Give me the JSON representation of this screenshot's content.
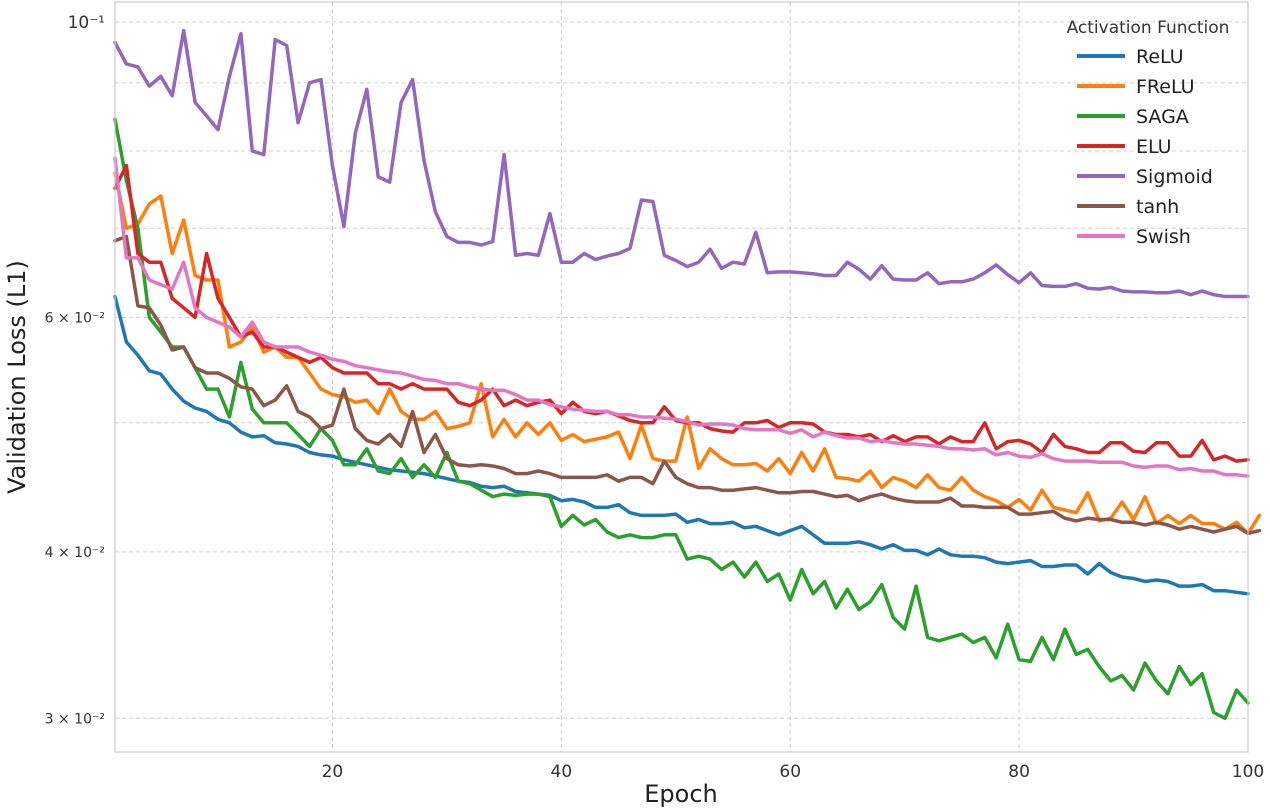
{
  "chart_data": {
    "type": "line",
    "title": "",
    "xlabel": "Epoch",
    "ylabel": "Validation Loss (L1)",
    "yscale": "log",
    "xlim": [
      1,
      100
    ],
    "ylim": [
      0.0283,
      0.1035
    ],
    "grid": true,
    "x_ticks": [
      20,
      40,
      60,
      80,
      100
    ],
    "y_ticks_major": [
      {
        "value": 0.1,
        "label": "10⁻¹"
      }
    ],
    "y_ticks_minor": [
      {
        "value": 0.03,
        "label": "3 × 10⁻²"
      },
      {
        "value": 0.04,
        "label": "4 × 10⁻²"
      },
      {
        "value": 0.05,
        "label": ""
      },
      {
        "value": 0.06,
        "label": "6 × 10⁻²"
      },
      {
        "value": 0.07,
        "label": ""
      },
      {
        "value": 0.08,
        "label": ""
      },
      {
        "value": 0.09,
        "label": ""
      }
    ],
    "legend": {
      "title": "Activation Function",
      "position": "top-right"
    },
    "series": [
      {
        "name": "ReLU",
        "color": "#1f77b4",
        "values": [
          0.0622,
          0.0575,
          0.0562,
          0.0547,
          0.0544,
          0.053,
          0.0519,
          0.0513,
          0.051,
          0.0503,
          0.05,
          0.0492,
          0.0488,
          0.0489,
          0.0483,
          0.0482,
          0.048,
          0.0475,
          0.0473,
          0.0472,
          0.0469,
          0.0467,
          0.0465,
          0.0463,
          0.0461,
          0.046,
          0.0459,
          0.0458,
          0.0456,
          0.0454,
          0.0452,
          0.0451,
          0.0448,
          0.0447,
          0.0448,
          0.0444,
          0.0443,
          0.0442,
          0.0441,
          0.0437,
          0.0438,
          0.0436,
          0.0432,
          0.0432,
          0.0434,
          0.0428,
          0.0426,
          0.0426,
          0.0426,
          0.0427,
          0.0421,
          0.0423,
          0.042,
          0.042,
          0.0421,
          0.0417,
          0.0418,
          0.0415,
          0.0412,
          0.0415,
          0.0418,
          0.0412,
          0.0406,
          0.0406,
          0.0406,
          0.0407,
          0.0405,
          0.0402,
          0.0405,
          0.0401,
          0.0401,
          0.0398,
          0.0402,
          0.0398,
          0.0397,
          0.0397,
          0.0396,
          0.0393,
          0.0392,
          0.0393,
          0.0394,
          0.039,
          0.039,
          0.0391,
          0.0391,
          0.0385,
          0.0392,
          0.0386,
          0.0383,
          0.0382,
          0.038,
          0.0381,
          0.038,
          0.0377,
          0.0377,
          0.0378,
          0.0374,
          0.0374,
          0.0373,
          0.0372
        ]
      },
      {
        "name": "FReLU",
        "color": "#ff7f0e",
        "values": [
          0.077,
          0.07,
          0.0705,
          0.073,
          0.074,
          0.067,
          0.071,
          0.0645,
          0.064,
          0.064,
          0.057,
          0.0575,
          0.059,
          0.0565,
          0.057,
          0.056,
          0.056,
          0.0545,
          0.053,
          0.0525,
          0.0523,
          0.0518,
          0.052,
          0.0508,
          0.053,
          0.051,
          0.0503,
          0.0503,
          0.051,
          0.0495,
          0.0497,
          0.05,
          0.0535,
          0.0488,
          0.0503,
          0.0488,
          0.05,
          0.049,
          0.05,
          0.0485,
          0.049,
          0.0484,
          0.0486,
          0.0488,
          0.0492,
          0.047,
          0.0498,
          0.047,
          0.0468,
          0.0468,
          0.0505,
          0.0462,
          0.0478,
          0.047,
          0.0465,
          0.0465,
          0.0466,
          0.046,
          0.047,
          0.0458,
          0.0475,
          0.046,
          0.0478,
          0.0455,
          0.0454,
          0.0452,
          0.046,
          0.0447,
          0.0455,
          0.0452,
          0.0447,
          0.0457,
          0.0447,
          0.0445,
          0.0455,
          0.0445,
          0.044,
          0.0437,
          0.0432,
          0.0438,
          0.043,
          0.0445,
          0.0432,
          0.043,
          0.0428,
          0.0443,
          0.0422,
          0.0424,
          0.0436,
          0.0423,
          0.044,
          0.042,
          0.0426,
          0.042,
          0.0426,
          0.042,
          0.042,
          0.0416,
          0.0421,
          0.0413,
          0.0426
        ]
      },
      {
        "name": "SAGA",
        "color": "#2ca02c",
        "values": [
          0.0845,
          0.076,
          0.07,
          0.06,
          0.0585,
          0.057,
          0.057,
          0.055,
          0.053,
          0.053,
          0.0505,
          0.0555,
          0.0512,
          0.05,
          0.05,
          0.05,
          0.049,
          0.048,
          0.0495,
          0.0485,
          0.0465,
          0.0465,
          0.0478,
          0.046,
          0.0458,
          0.047,
          0.0455,
          0.0465,
          0.0455,
          0.0475,
          0.0452,
          0.045,
          0.0445,
          0.044,
          0.0442,
          0.0441,
          0.0442,
          0.0442,
          0.044,
          0.0418,
          0.0426,
          0.0419,
          0.0423,
          0.0414,
          0.041,
          0.0412,
          0.041,
          0.041,
          0.0412,
          0.0412,
          0.0395,
          0.0397,
          0.0395,
          0.0388,
          0.0393,
          0.0383,
          0.0393,
          0.038,
          0.0385,
          0.0368,
          0.0388,
          0.0372,
          0.038,
          0.0363,
          0.0375,
          0.0362,
          0.0367,
          0.0378,
          0.0357,
          0.035,
          0.0377,
          0.0345,
          0.0343,
          0.0345,
          0.0347,
          0.0342,
          0.0345,
          0.0333,
          0.0353,
          0.0332,
          0.0331,
          0.0345,
          0.0332,
          0.035,
          0.0335,
          0.0338,
          0.0328,
          0.032,
          0.0323,
          0.0315,
          0.033,
          0.032,
          0.0313,
          0.0328,
          0.0318,
          0.0324,
          0.0303,
          0.03,
          0.0315,
          0.0308
        ]
      },
      {
        "name": "ELU",
        "color": "#d62728",
        "values": [
          0.075,
          0.078,
          0.067,
          0.066,
          0.066,
          0.062,
          0.061,
          0.06,
          0.067,
          0.062,
          0.06,
          0.058,
          0.0585,
          0.057,
          0.057,
          0.0565,
          0.056,
          0.0555,
          0.056,
          0.055,
          0.0545,
          0.0545,
          0.0545,
          0.0535,
          0.0535,
          0.053,
          0.0535,
          0.053,
          0.053,
          0.053,
          0.0518,
          0.0515,
          0.052,
          0.053,
          0.0515,
          0.052,
          0.0515,
          0.0518,
          0.052,
          0.0508,
          0.0518,
          0.051,
          0.0508,
          0.051,
          0.0506,
          0.0502,
          0.05,
          0.05,
          0.0514,
          0.0502,
          0.05,
          0.05,
          0.0495,
          0.0493,
          0.0492,
          0.05,
          0.05,
          0.0502,
          0.0496,
          0.05,
          0.05,
          0.0499,
          0.0492,
          0.049,
          0.049,
          0.0488,
          0.049,
          0.0484,
          0.0489,
          0.0484,
          0.0488,
          0.0488,
          0.0482,
          0.0488,
          0.0484,
          0.0484,
          0.05,
          0.0478,
          0.0484,
          0.0485,
          0.0482,
          0.0475,
          0.049,
          0.048,
          0.0478,
          0.0475,
          0.0475,
          0.0483,
          0.0483,
          0.0476,
          0.0475,
          0.0483,
          0.0483,
          0.0472,
          0.0472,
          0.0485,
          0.0469,
          0.0472,
          0.0468,
          0.0469
        ]
      },
      {
        "name": "Sigmoid",
        "color": "#9467bd",
        "values": [
          0.0965,
          0.093,
          0.0925,
          0.0895,
          0.091,
          0.088,
          0.0985,
          0.087,
          0.085,
          0.083,
          0.091,
          0.098,
          0.08,
          0.0795,
          0.097,
          0.096,
          0.084,
          0.09,
          0.0905,
          0.078,
          0.0702,
          0.0825,
          0.089,
          0.0765,
          0.0758,
          0.087,
          0.0905,
          0.0787,
          0.072,
          0.069,
          0.0683,
          0.0683,
          0.068,
          0.0684,
          0.0795,
          0.0668,
          0.067,
          0.0668,
          0.0718,
          0.066,
          0.066,
          0.067,
          0.0663,
          0.0667,
          0.067,
          0.0676,
          0.0735,
          0.0733,
          0.0668,
          0.0662,
          0.0655,
          0.066,
          0.0675,
          0.0653,
          0.066,
          0.0658,
          0.0695,
          0.0648,
          0.0649,
          0.0649,
          0.0648,
          0.0647,
          0.0645,
          0.0645,
          0.066,
          0.0652,
          0.0641,
          0.0656,
          0.0641,
          0.064,
          0.064,
          0.0648,
          0.0636,
          0.0638,
          0.0638,
          0.0641,
          0.0648,
          0.0657,
          0.0646,
          0.0637,
          0.0648,
          0.0634,
          0.0633,
          0.0633,
          0.0636,
          0.0631,
          0.063,
          0.0632,
          0.0628,
          0.0627,
          0.0627,
          0.0626,
          0.0626,
          0.0628,
          0.0624,
          0.0628,
          0.0624,
          0.0622,
          0.0622,
          0.0622
        ]
      },
      {
        "name": "tanh",
        "color": "#8c564b",
        "values": [
          0.0685,
          0.069,
          0.0612,
          0.061,
          0.0592,
          0.0567,
          0.057,
          0.055,
          0.0545,
          0.0545,
          0.054,
          0.0532,
          0.053,
          0.0515,
          0.052,
          0.0533,
          0.051,
          0.0505,
          0.0495,
          0.0498,
          0.053,
          0.0495,
          0.0485,
          0.0482,
          0.049,
          0.048,
          0.051,
          0.0475,
          0.049,
          0.047,
          0.0465,
          0.0464,
          0.0465,
          0.0464,
          0.0462,
          0.0458,
          0.0458,
          0.046,
          0.0458,
          0.0455,
          0.0455,
          0.0455,
          0.0455,
          0.0457,
          0.0452,
          0.0455,
          0.0455,
          0.045,
          0.0468,
          0.0455,
          0.045,
          0.0447,
          0.0447,
          0.0445,
          0.0445,
          0.0446,
          0.0447,
          0.0445,
          0.0443,
          0.0443,
          0.0444,
          0.0444,
          0.0442,
          0.044,
          0.0441,
          0.0437,
          0.044,
          0.0442,
          0.0439,
          0.0437,
          0.0436,
          0.0436,
          0.0436,
          0.0439,
          0.0433,
          0.0433,
          0.0432,
          0.0432,
          0.0432,
          0.0427,
          0.0427,
          0.0428,
          0.0429,
          0.0424,
          0.0422,
          0.0424,
          0.0423,
          0.0423,
          0.0421,
          0.0421,
          0.0419,
          0.0421,
          0.0419,
          0.0416,
          0.0418,
          0.0416,
          0.0414,
          0.0416,
          0.0418,
          0.0413,
          0.0415
        ]
      },
      {
        "name": "Swish",
        "color": "#e377c2",
        "values": [
          0.079,
          0.0665,
          0.0665,
          0.064,
          0.0635,
          0.063,
          0.066,
          0.061,
          0.06,
          0.0595,
          0.059,
          0.058,
          0.0595,
          0.0575,
          0.057,
          0.057,
          0.057,
          0.0565,
          0.0562,
          0.0558,
          0.0556,
          0.0552,
          0.055,
          0.0548,
          0.0546,
          0.0545,
          0.0542,
          0.0539,
          0.0538,
          0.0535,
          0.0535,
          0.0532,
          0.053,
          0.0529,
          0.0529,
          0.0525,
          0.052,
          0.052,
          0.0516,
          0.0514,
          0.0512,
          0.0511,
          0.051,
          0.051,
          0.0507,
          0.0507,
          0.0505,
          0.0505,
          0.0504,
          0.0503,
          0.0501,
          0.0498,
          0.0499,
          0.0499,
          0.0498,
          0.0495,
          0.0494,
          0.0494,
          0.0494,
          0.0491,
          0.0494,
          0.0488,
          0.0492,
          0.0489,
          0.0487,
          0.0487,
          0.0484,
          0.0485,
          0.0483,
          0.0482,
          0.0482,
          0.0481,
          0.048,
          0.0478,
          0.0478,
          0.0477,
          0.0478,
          0.0473,
          0.0475,
          0.0472,
          0.0471,
          0.0474,
          0.047,
          0.0468,
          0.0468,
          0.0468,
          0.0467,
          0.0467,
          0.0467,
          0.0464,
          0.0463,
          0.0464,
          0.0464,
          0.0461,
          0.0462,
          0.046,
          0.046,
          0.0457,
          0.0457,
          0.0456
        ]
      }
    ]
  }
}
